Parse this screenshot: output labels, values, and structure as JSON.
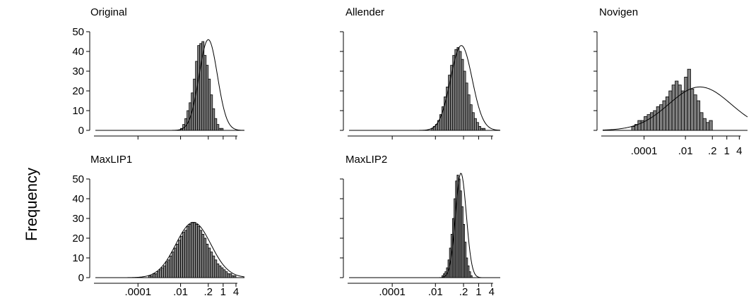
{
  "figure": {
    "ylabel": "Frequency"
  },
  "chart_data": [
    {
      "type": "bar",
      "title": "Original",
      "x_scale": "log10",
      "xlim": [
        1e-06,
        10
      ],
      "ylim": [
        0,
        50
      ],
      "yticks": [
        0,
        10,
        20,
        30,
        40,
        50
      ],
      "x_tick_labels": [],
      "show_y_labels": true,
      "show_x_labels": false,
      "bin_start_log10": -2.0,
      "bin_width_log10": 0.1,
      "values": [
        1,
        3,
        6,
        10,
        14,
        19,
        26,
        35,
        43,
        44,
        45,
        38,
        33,
        26,
        18,
        11,
        6,
        3,
        1,
        1
      ],
      "curve": {
        "mean_log10": -0.7,
        "sd_log10": 0.43,
        "peak": 46
      }
    },
    {
      "type": "bar",
      "title": "Allender",
      "x_scale": "log10",
      "xlim": [
        1e-06,
        10
      ],
      "ylim": [
        0,
        50
      ],
      "yticks": [
        0,
        10,
        20,
        30,
        40,
        50
      ],
      "x_tick_labels": [],
      "show_y_labels": false,
      "show_x_labels": false,
      "bin_start_log10": -2.2,
      "bin_width_log10": 0.1,
      "values": [
        1,
        2,
        3,
        5,
        8,
        12,
        17,
        22,
        28,
        33,
        38,
        41,
        42,
        40,
        36,
        30,
        24,
        18,
        13,
        9,
        6,
        4,
        2,
        1,
        1
      ],
      "curve": {
        "mean_log10": -0.8,
        "sd_log10": 0.5,
        "peak": 43
      }
    },
    {
      "type": "bar",
      "title": "Novigen",
      "x_scale": "log10",
      "xlim": [
        1e-06,
        10
      ],
      "ylim": [
        0,
        50
      ],
      "yticks": [
        0,
        10,
        20,
        30,
        40,
        50
      ],
      "x_tick_labels": [
        ".0001",
        ".01",
        ".2",
        "1",
        "4"
      ],
      "show_y_labels": false,
      "show_x_labels": true,
      "bin_start_log10": -4.6,
      "bin_width_log10": 0.15,
      "values": [
        2,
        3,
        5,
        5,
        7,
        8,
        9,
        10,
        12,
        13,
        15,
        17,
        20,
        23,
        25,
        23,
        20,
        27,
        31,
        21,
        18,
        15,
        9,
        6,
        4,
        5
      ],
      "curve": {
        "mean_log10": -1.3,
        "sd_log10": 1.5,
        "peak": 22
      }
    },
    {
      "type": "bar",
      "title": "MaxLIP1",
      "x_scale": "log10",
      "xlim": [
        1e-06,
        10
      ],
      "ylim": [
        0,
        50
      ],
      "yticks": [
        0,
        10,
        20,
        30,
        40,
        50
      ],
      "x_tick_labels": [
        ".0001",
        ".01",
        ".2",
        "1",
        "4"
      ],
      "show_y_labels": true,
      "show_x_labels": true,
      "bin_start_log10": -3.5,
      "bin_width_log10": 0.1,
      "values": [
        1,
        1,
        2,
        2,
        3,
        4,
        5,
        6,
        8,
        9,
        11,
        13,
        15,
        17,
        19,
        21,
        23,
        24,
        26,
        27,
        28,
        28,
        27,
        26,
        24,
        22,
        20,
        17,
        15,
        13,
        11,
        9,
        7,
        6,
        5,
        4,
        3,
        2,
        2,
        1,
        1
      ],
      "curve": {
        "mean_log10": -1.4,
        "sd_log10": 0.82,
        "peak": 28
      }
    },
    {
      "type": "bar",
      "title": "MaxLIP2",
      "x_scale": "log10",
      "xlim": [
        1e-06,
        10
      ],
      "ylim": [
        0,
        50
      ],
      "yticks": [
        0,
        10,
        20,
        30,
        40,
        50
      ],
      "x_tick_labels": [
        ".0001",
        ".01",
        ".2",
        "1",
        "4"
      ],
      "show_y_labels": false,
      "show_x_labels": true,
      "bin_start_log10": -1.7,
      "bin_width_log10": 0.07,
      "values": [
        1,
        2,
        3,
        5,
        9,
        15,
        22,
        30,
        40,
        49,
        52,
        50,
        44,
        36,
        27,
        18,
        10,
        6,
        3,
        1
      ],
      "curve": {
        "mean_log10": -0.82,
        "sd_log10": 0.25,
        "peak": 53
      }
    }
  ]
}
